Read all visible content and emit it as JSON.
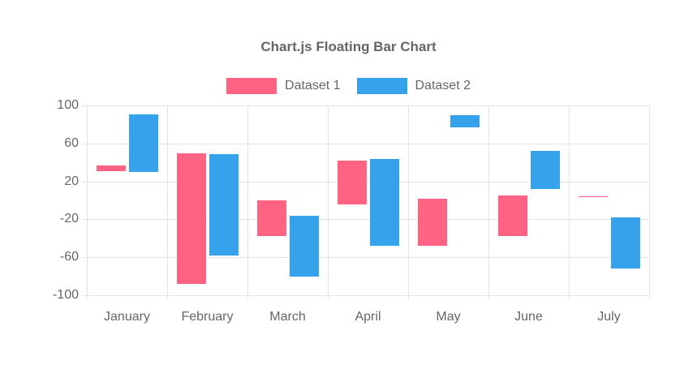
{
  "chart_data": {
    "type": "bar",
    "variant": "floating",
    "title": "Chart.js Floating Bar Chart",
    "categories": [
      "January",
      "February",
      "March",
      "April",
      "May",
      "June",
      "July"
    ],
    "series": [
      {
        "name": "Dataset 1",
        "color": "#ff6384",
        "values": [
          [
            31,
            37
          ],
          [
            -88,
            50
          ],
          [
            -38,
            0
          ],
          [
            -4,
            42
          ],
          [
            -48,
            2
          ],
          [
            -38,
            5
          ],
          [
            3,
            4
          ]
        ]
      },
      {
        "name": "Dataset 2",
        "color": "#36a2eb",
        "values": [
          [
            30,
            91
          ],
          [
            -58,
            49
          ],
          [
            -80,
            -16
          ],
          [
            -48,
            44
          ],
          [
            77,
            90
          ],
          [
            12,
            52
          ],
          [
            -72,
            -18
          ]
        ]
      }
    ],
    "yticks": [
      100,
      60,
      20,
      -20,
      -60,
      -100
    ],
    "ylim": [
      -100,
      100
    ],
    "xlabel": "",
    "ylabel": "",
    "grid": true,
    "legend_position": "top",
    "colors": {
      "text": "#666666",
      "grid": "#e3e3e3",
      "background": "#ffffff"
    }
  }
}
